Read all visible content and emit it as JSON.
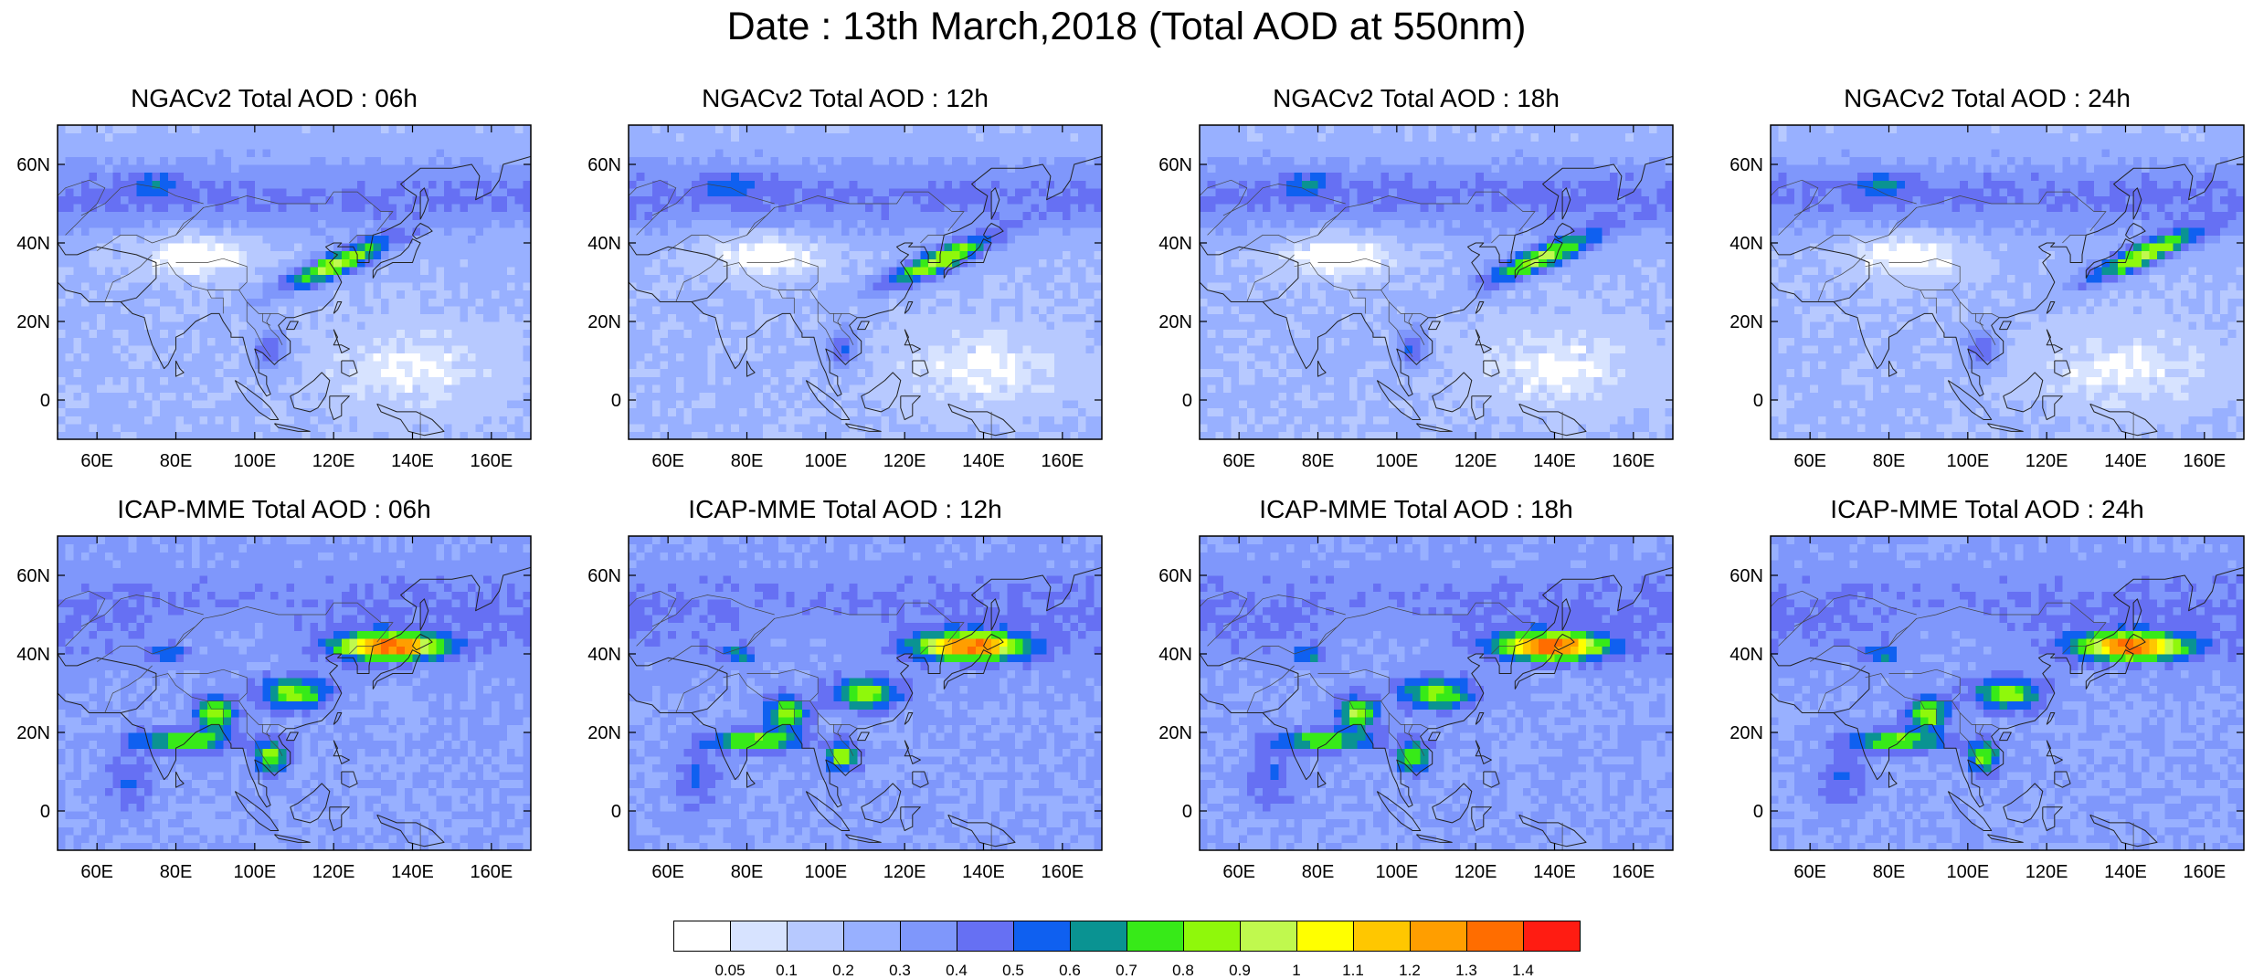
{
  "title": "Date : 13th March,2018 (Total AOD at 550nm)",
  "panels": [
    {
      "title": "NGACv2 Total AOD : 06h",
      "model": "NGAC",
      "hour": 6
    },
    {
      "title": "NGACv2 Total AOD : 12h",
      "model": "NGAC",
      "hour": 12
    },
    {
      "title": "NGACv2 Total AOD : 18h",
      "model": "NGAC",
      "hour": 18
    },
    {
      "title": "NGACv2 Total AOD : 24h",
      "model": "NGAC",
      "hour": 24
    },
    {
      "title": "ICAP-MME Total AOD : 06h",
      "model": "ICAP",
      "hour": 6
    },
    {
      "title": "ICAP-MME Total AOD : 12h",
      "model": "ICAP",
      "hour": 12
    },
    {
      "title": "ICAP-MME Total AOD : 18h",
      "model": "ICAP",
      "hour": 18
    },
    {
      "title": "ICAP-MME Total AOD : 24h",
      "model": "ICAP",
      "hour": 24
    }
  ],
  "axes": {
    "lat_ticks": [
      "60N",
      "40N",
      "20N",
      "0"
    ],
    "lat_values": [
      60,
      40,
      20,
      0
    ],
    "lon_ticks": [
      "60E",
      "80E",
      "100E",
      "120E",
      "140E",
      "160E"
    ],
    "lon_values": [
      60,
      80,
      100,
      120,
      140,
      160
    ],
    "lat_range": [
      -10,
      70
    ],
    "lon_range": [
      50,
      170
    ]
  },
  "colorbar": {
    "labels": [
      "0.05",
      "0.1",
      "0.2",
      "0.3",
      "0.4",
      "0.5",
      "0.6",
      "0.7",
      "0.8",
      "0.9",
      "1",
      "1.1",
      "1.2",
      "1.3",
      "1.4"
    ],
    "colors": [
      "#ffffff",
      "#d7e3ff",
      "#b7c9ff",
      "#98b0ff",
      "#7f97fb",
      "#6670f3",
      "#0f60f0",
      "#0a9392",
      "#37ea18",
      "#8ff80b",
      "#c0f94e",
      "#ffff00",
      "#ffc700",
      "#ff9e00",
      "#ff6d00",
      "#ff1c12"
    ]
  }
}
